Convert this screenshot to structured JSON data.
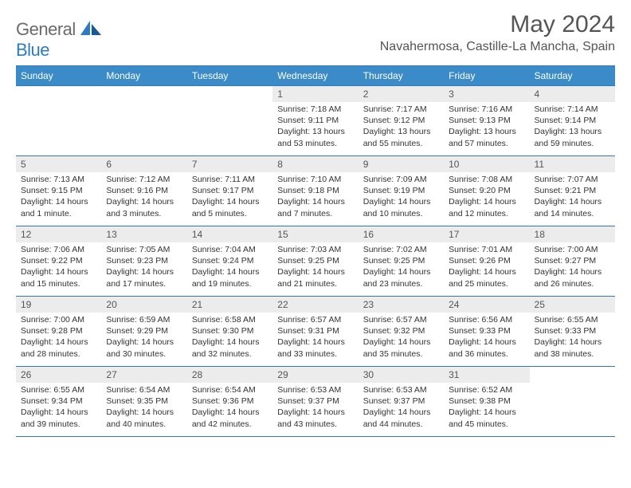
{
  "logo": {
    "word1": "General",
    "word2": "Blue"
  },
  "header": {
    "month_title": "May 2024",
    "location": "Navahermosa, Castille-La Mancha, Spain"
  },
  "colors": {
    "header_bg": "#3b8bc9",
    "border": "#2f7bbf",
    "daynum_bg": "#ececec",
    "text_muted": "#555555"
  },
  "weekdays": [
    "Sunday",
    "Monday",
    "Tuesday",
    "Wednesday",
    "Thursday",
    "Friday",
    "Saturday"
  ],
  "weeks": [
    [
      null,
      null,
      null,
      {
        "n": "1",
        "sr": "Sunrise: 7:18 AM",
        "ss": "Sunset: 9:11 PM",
        "d1": "Daylight: 13 hours",
        "d2": "and 53 minutes."
      },
      {
        "n": "2",
        "sr": "Sunrise: 7:17 AM",
        "ss": "Sunset: 9:12 PM",
        "d1": "Daylight: 13 hours",
        "d2": "and 55 minutes."
      },
      {
        "n": "3",
        "sr": "Sunrise: 7:16 AM",
        "ss": "Sunset: 9:13 PM",
        "d1": "Daylight: 13 hours",
        "d2": "and 57 minutes."
      },
      {
        "n": "4",
        "sr": "Sunrise: 7:14 AM",
        "ss": "Sunset: 9:14 PM",
        "d1": "Daylight: 13 hours",
        "d2": "and 59 minutes."
      }
    ],
    [
      {
        "n": "5",
        "sr": "Sunrise: 7:13 AM",
        "ss": "Sunset: 9:15 PM",
        "d1": "Daylight: 14 hours",
        "d2": "and 1 minute."
      },
      {
        "n": "6",
        "sr": "Sunrise: 7:12 AM",
        "ss": "Sunset: 9:16 PM",
        "d1": "Daylight: 14 hours",
        "d2": "and 3 minutes."
      },
      {
        "n": "7",
        "sr": "Sunrise: 7:11 AM",
        "ss": "Sunset: 9:17 PM",
        "d1": "Daylight: 14 hours",
        "d2": "and 5 minutes."
      },
      {
        "n": "8",
        "sr": "Sunrise: 7:10 AM",
        "ss": "Sunset: 9:18 PM",
        "d1": "Daylight: 14 hours",
        "d2": "and 7 minutes."
      },
      {
        "n": "9",
        "sr": "Sunrise: 7:09 AM",
        "ss": "Sunset: 9:19 PM",
        "d1": "Daylight: 14 hours",
        "d2": "and 10 minutes."
      },
      {
        "n": "10",
        "sr": "Sunrise: 7:08 AM",
        "ss": "Sunset: 9:20 PM",
        "d1": "Daylight: 14 hours",
        "d2": "and 12 minutes."
      },
      {
        "n": "11",
        "sr": "Sunrise: 7:07 AM",
        "ss": "Sunset: 9:21 PM",
        "d1": "Daylight: 14 hours",
        "d2": "and 14 minutes."
      }
    ],
    [
      {
        "n": "12",
        "sr": "Sunrise: 7:06 AM",
        "ss": "Sunset: 9:22 PM",
        "d1": "Daylight: 14 hours",
        "d2": "and 15 minutes."
      },
      {
        "n": "13",
        "sr": "Sunrise: 7:05 AM",
        "ss": "Sunset: 9:23 PM",
        "d1": "Daylight: 14 hours",
        "d2": "and 17 minutes."
      },
      {
        "n": "14",
        "sr": "Sunrise: 7:04 AM",
        "ss": "Sunset: 9:24 PM",
        "d1": "Daylight: 14 hours",
        "d2": "and 19 minutes."
      },
      {
        "n": "15",
        "sr": "Sunrise: 7:03 AM",
        "ss": "Sunset: 9:25 PM",
        "d1": "Daylight: 14 hours",
        "d2": "and 21 minutes."
      },
      {
        "n": "16",
        "sr": "Sunrise: 7:02 AM",
        "ss": "Sunset: 9:25 PM",
        "d1": "Daylight: 14 hours",
        "d2": "and 23 minutes."
      },
      {
        "n": "17",
        "sr": "Sunrise: 7:01 AM",
        "ss": "Sunset: 9:26 PM",
        "d1": "Daylight: 14 hours",
        "d2": "and 25 minutes."
      },
      {
        "n": "18",
        "sr": "Sunrise: 7:00 AM",
        "ss": "Sunset: 9:27 PM",
        "d1": "Daylight: 14 hours",
        "d2": "and 26 minutes."
      }
    ],
    [
      {
        "n": "19",
        "sr": "Sunrise: 7:00 AM",
        "ss": "Sunset: 9:28 PM",
        "d1": "Daylight: 14 hours",
        "d2": "and 28 minutes."
      },
      {
        "n": "20",
        "sr": "Sunrise: 6:59 AM",
        "ss": "Sunset: 9:29 PM",
        "d1": "Daylight: 14 hours",
        "d2": "and 30 minutes."
      },
      {
        "n": "21",
        "sr": "Sunrise: 6:58 AM",
        "ss": "Sunset: 9:30 PM",
        "d1": "Daylight: 14 hours",
        "d2": "and 32 minutes."
      },
      {
        "n": "22",
        "sr": "Sunrise: 6:57 AM",
        "ss": "Sunset: 9:31 PM",
        "d1": "Daylight: 14 hours",
        "d2": "and 33 minutes."
      },
      {
        "n": "23",
        "sr": "Sunrise: 6:57 AM",
        "ss": "Sunset: 9:32 PM",
        "d1": "Daylight: 14 hours",
        "d2": "and 35 minutes."
      },
      {
        "n": "24",
        "sr": "Sunrise: 6:56 AM",
        "ss": "Sunset: 9:33 PM",
        "d1": "Daylight: 14 hours",
        "d2": "and 36 minutes."
      },
      {
        "n": "25",
        "sr": "Sunrise: 6:55 AM",
        "ss": "Sunset: 9:33 PM",
        "d1": "Daylight: 14 hours",
        "d2": "and 38 minutes."
      }
    ],
    [
      {
        "n": "26",
        "sr": "Sunrise: 6:55 AM",
        "ss": "Sunset: 9:34 PM",
        "d1": "Daylight: 14 hours",
        "d2": "and 39 minutes."
      },
      {
        "n": "27",
        "sr": "Sunrise: 6:54 AM",
        "ss": "Sunset: 9:35 PM",
        "d1": "Daylight: 14 hours",
        "d2": "and 40 minutes."
      },
      {
        "n": "28",
        "sr": "Sunrise: 6:54 AM",
        "ss": "Sunset: 9:36 PM",
        "d1": "Daylight: 14 hours",
        "d2": "and 42 minutes."
      },
      {
        "n": "29",
        "sr": "Sunrise: 6:53 AM",
        "ss": "Sunset: 9:37 PM",
        "d1": "Daylight: 14 hours",
        "d2": "and 43 minutes."
      },
      {
        "n": "30",
        "sr": "Sunrise: 6:53 AM",
        "ss": "Sunset: 9:37 PM",
        "d1": "Daylight: 14 hours",
        "d2": "and 44 minutes."
      },
      {
        "n": "31",
        "sr": "Sunrise: 6:52 AM",
        "ss": "Sunset: 9:38 PM",
        "d1": "Daylight: 14 hours",
        "d2": "and 45 minutes."
      },
      null
    ]
  ]
}
